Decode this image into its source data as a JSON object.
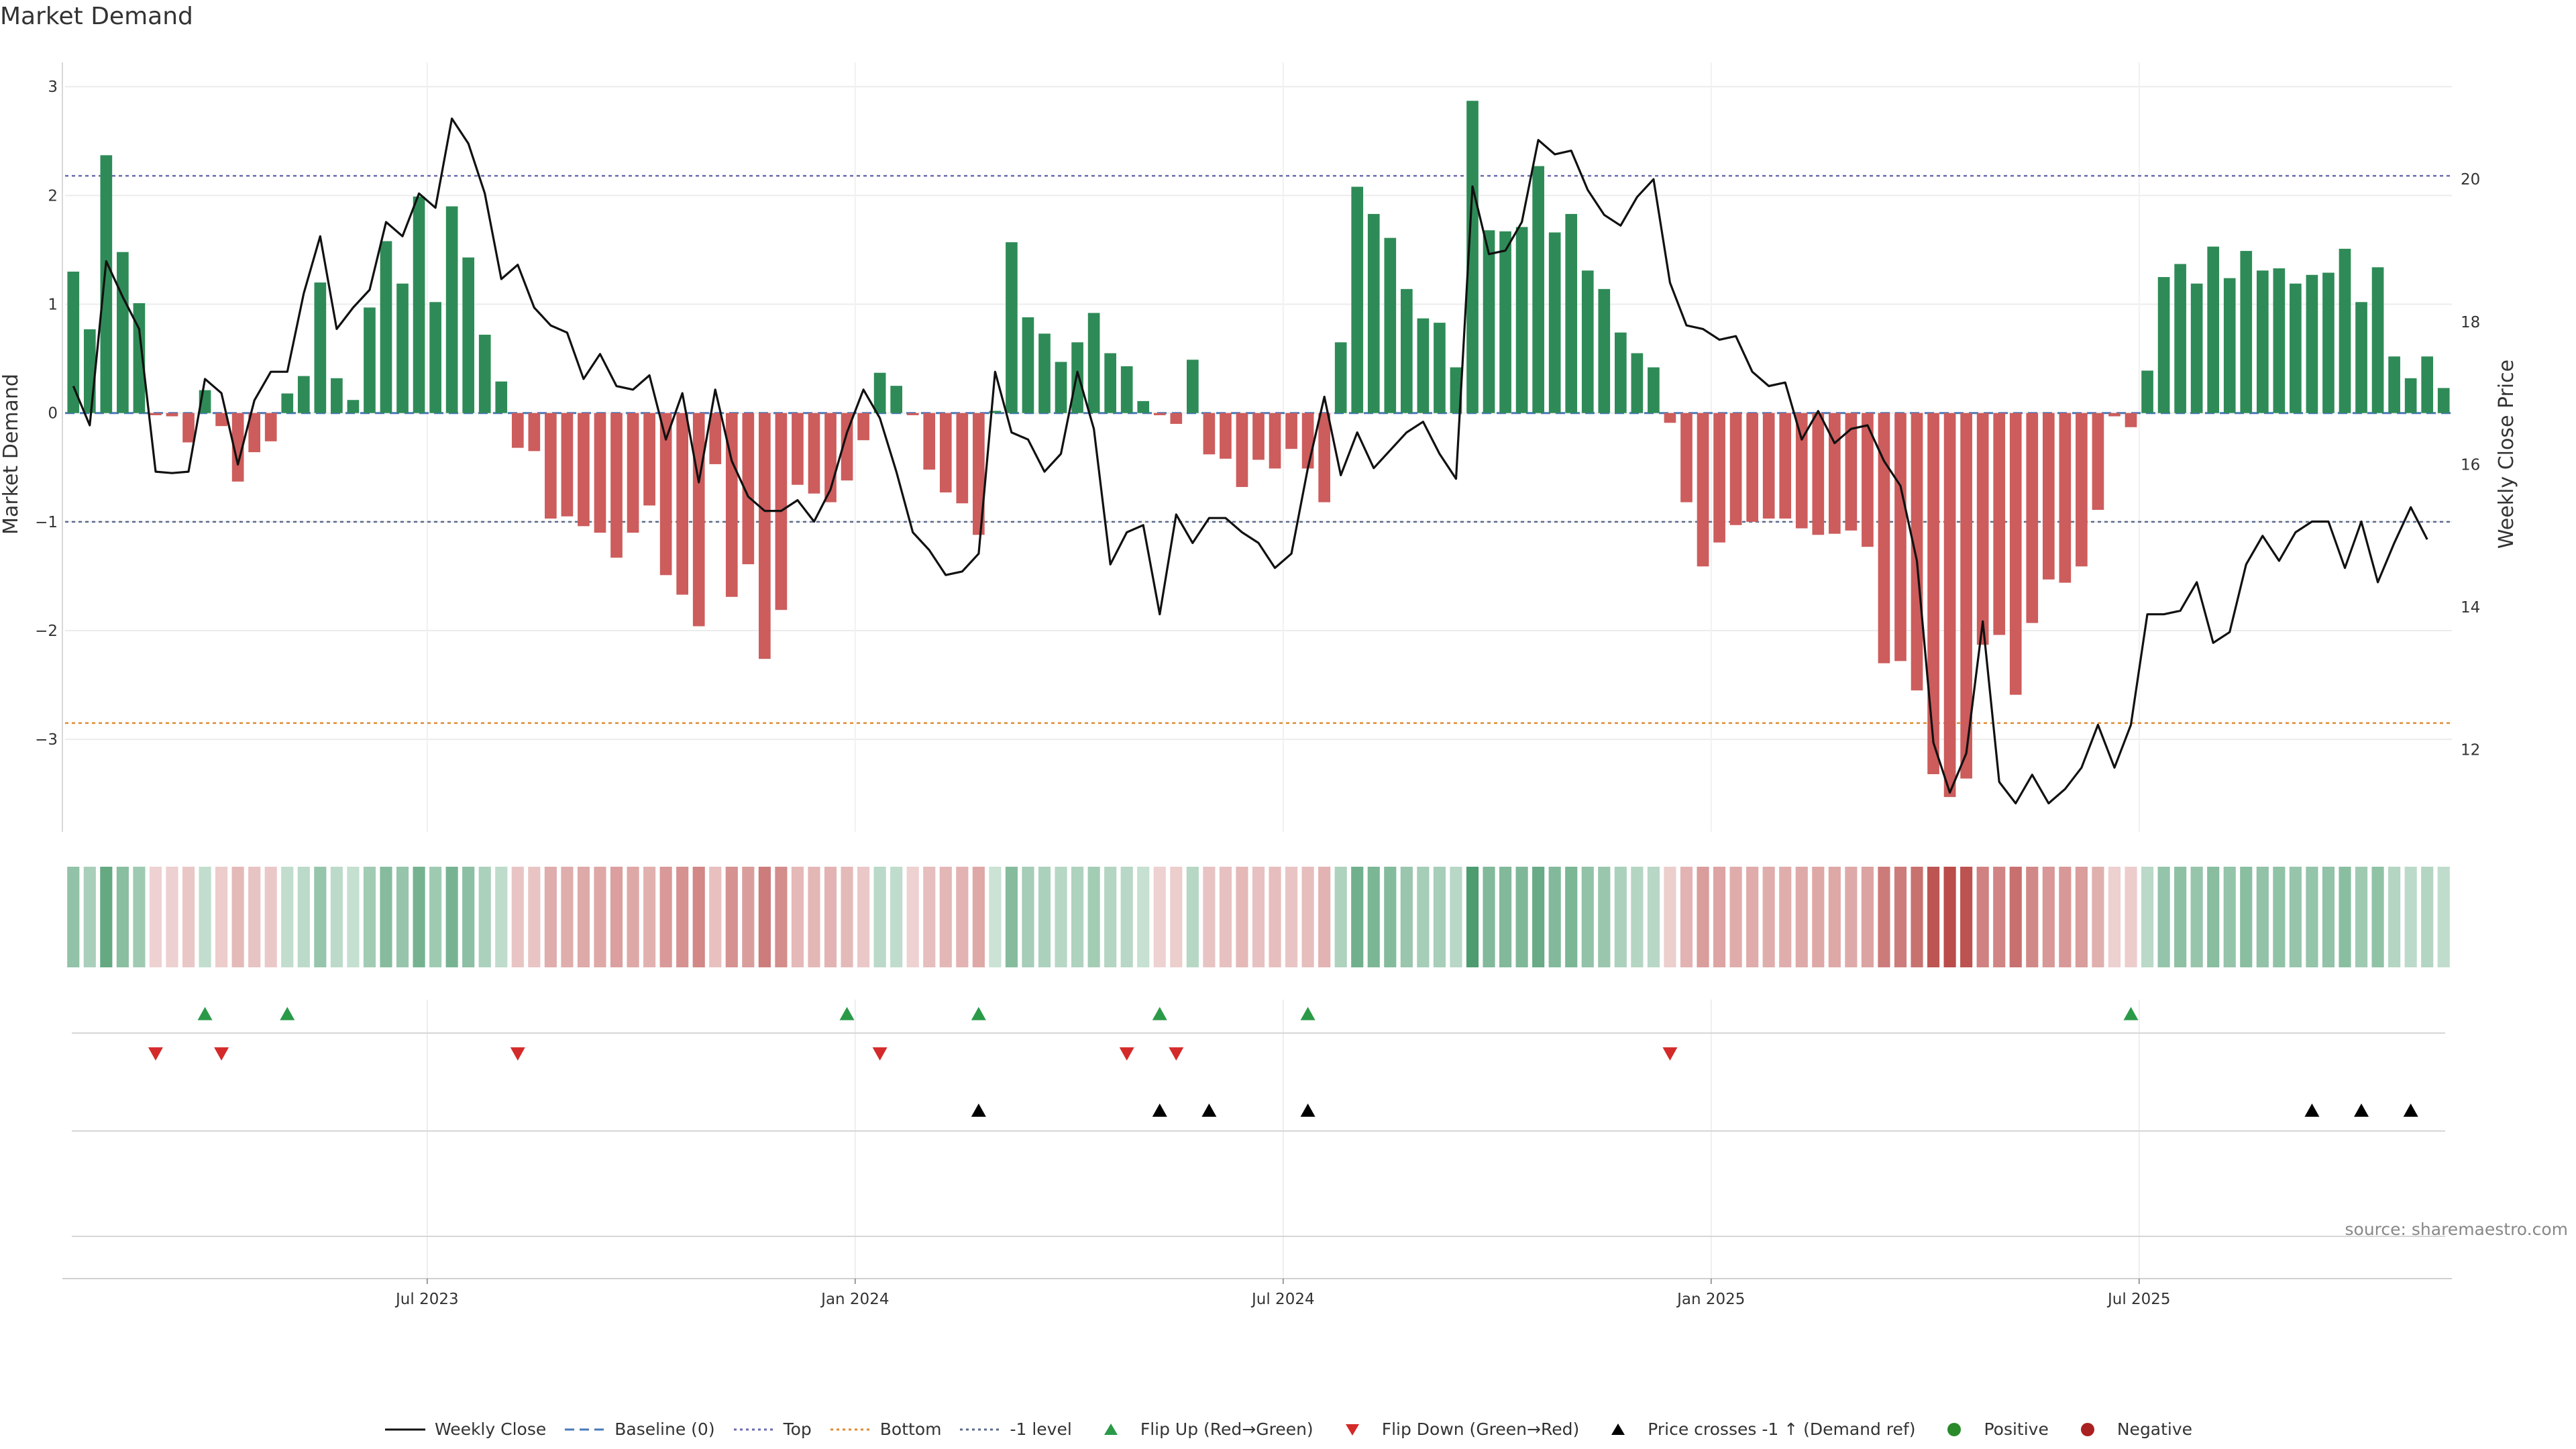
{
  "chart_data": {
    "type": "bar+line",
    "title": "Market Demand",
    "source": "source: sharemaestro.com",
    "y_left": {
      "label": "Market Demand",
      "ticks": [
        3,
        2,
        1,
        0,
        -1,
        -2,
        -3
      ],
      "tick_labels": [
        "3",
        "2",
        "1",
        "0",
        "−1",
        "−2",
        "−3"
      ],
      "range": [
        -3.85,
        3.1
      ]
    },
    "y_right": {
      "label": "Weekly Close Price",
      "ticks": [
        20,
        18,
        16,
        14,
        12
      ],
      "tick_labels": [
        "20",
        "18",
        "16",
        "14",
        "12"
      ],
      "range": [
        10.85,
        21.45
      ]
    },
    "x_ticks": [
      {
        "label": "Jul 2023",
        "week": 22
      },
      {
        "label": "Jan 2024",
        "week": 48
      },
      {
        "label": "Jul 2024",
        "week": 74
      },
      {
        "label": "Jan 2025",
        "week": 100
      },
      {
        "label": "Jul 2025",
        "week": 126
      }
    ],
    "reference_lines": {
      "top": 2.18,
      "bottom": -2.85,
      "minus_one": -1.0,
      "baseline": 0
    },
    "demand": [
      1.3,
      0.77,
      2.37,
      1.48,
      1.01,
      -0.02,
      -0.03,
      -0.27,
      0.21,
      -0.12,
      -0.63,
      -0.36,
      -0.26,
      0.18,
      0.34,
      1.2,
      0.32,
      0.12,
      0.97,
      1.58,
      1.19,
      1.99,
      1.02,
      1.9,
      1.43,
      0.72,
      0.29,
      -0.32,
      -0.35,
      -0.97,
      -0.95,
      -1.04,
      -1.1,
      -1.33,
      -1.1,
      -0.85,
      -1.49,
      -1.67,
      -1.96,
      -0.47,
      -1.69,
      -1.39,
      -2.26,
      -1.81,
      -0.66,
      -0.74,
      -0.82,
      -0.62,
      -0.25,
      0.37,
      0.25,
      -0.02,
      -0.52,
      -0.73,
      -0.83,
      -1.12,
      0.02,
      1.57,
      0.88,
      0.73,
      0.47,
      0.65,
      0.92,
      0.55,
      0.43,
      0.11,
      -0.02,
      -0.1,
      0.49,
      -0.38,
      -0.42,
      -0.68,
      -0.43,
      -0.51,
      -0.33,
      -0.51,
      -0.82,
      0.65,
      2.08,
      1.83,
      1.61,
      1.14,
      0.87,
      0.83,
      0.42,
      2.87,
      1.68,
      1.67,
      1.71,
      2.27,
      1.66,
      1.83,
      1.31,
      1.14,
      0.74,
      0.55,
      0.42,
      -0.09,
      -0.82,
      -1.41,
      -1.19,
      -1.03,
      -1.0,
      -0.97,
      -0.97,
      -1.06,
      -1.12,
      -1.11,
      -1.08,
      -1.23,
      -2.3,
      -2.28,
      -2.55,
      -3.32,
      -3.53,
      -3.36,
      -2.13,
      -2.04,
      -2.59,
      -1.93,
      -1.53,
      -1.56,
      -1.41,
      -0.89,
      -0.03,
      -0.13,
      0.39,
      1.25,
      1.37,
      1.19,
      1.53,
      1.24,
      1.49,
      1.31,
      1.33,
      1.19,
      1.27,
      1.29,
      1.51,
      1.02,
      1.34,
      0.52,
      0.32,
      0.52,
      0.23
    ],
    "close": [
      17.1,
      16.55,
      18.85,
      18.35,
      17.9,
      15.9,
      15.88,
      15.9,
      17.2,
      17.0,
      16.0,
      16.9,
      17.3,
      17.3,
      18.4,
      19.2,
      17.9,
      18.2,
      18.45,
      19.4,
      19.2,
      19.8,
      19.6,
      20.85,
      20.5,
      19.8,
      18.6,
      18.8,
      18.2,
      17.95,
      17.85,
      17.2,
      17.55,
      17.1,
      17.05,
      17.25,
      16.35,
      17.0,
      15.75,
      17.05,
      16.05,
      15.55,
      15.35,
      15.35,
      15.5,
      15.2,
      15.65,
      16.45,
      17.05,
      16.65,
      15.9,
      15.05,
      14.8,
      14.45,
      14.5,
      14.75,
      17.3,
      16.45,
      16.35,
      15.9,
      16.15,
      17.3,
      16.5,
      14.6,
      15.05,
      15.15,
      13.9,
      15.3,
      14.9,
      15.25,
      15.25,
      15.05,
      14.9,
      14.55,
      14.75,
      15.95,
      16.95,
      15.85,
      16.45,
      15.95,
      16.2,
      16.45,
      16.6,
      16.15,
      15.8,
      19.9,
      18.95,
      19.0,
      19.4,
      20.55,
      20.35,
      20.4,
      19.85,
      19.5,
      19.35,
      19.75,
      20.0,
      18.55,
      17.95,
      17.9,
      17.75,
      17.8,
      17.3,
      17.1,
      17.15,
      16.35,
      16.75,
      16.3,
      16.5,
      16.55,
      16.05,
      15.7,
      14.65,
      12.1,
      11.4,
      11.95,
      13.8,
      11.55,
      11.25,
      11.65,
      11.25,
      11.45,
      11.75,
      12.35,
      11.75,
      12.35,
      13.9,
      13.9,
      13.95,
      14.35,
      13.5,
      13.65,
      14.6,
      15.0,
      14.65,
      15.05,
      15.2,
      15.2,
      14.55,
      15.2,
      14.35,
      14.9,
      15.4,
      14.95
    ],
    "flip_up_weeks": [
      8,
      13,
      47,
      55,
      66,
      75,
      125
    ],
    "flip_down_weeks": [
      5,
      9,
      27,
      49,
      64,
      67,
      97
    ],
    "price_cross_weeks": [
      55,
      66,
      69,
      75,
      136,
      139,
      142
    ],
    "legend": [
      {
        "label": "Weekly Close",
        "symbol": "line-solid",
        "color": "#111111"
      },
      {
        "label": "Baseline (0)",
        "symbol": "line-dashed",
        "color": "#4a78b8"
      },
      {
        "label": "Top",
        "symbol": "line-dotted",
        "color": "#6a6ab0"
      },
      {
        "label": "Bottom",
        "symbol": "line-dotted",
        "color": "#e08a30"
      },
      {
        "label": "-1 level",
        "symbol": "line-dotted",
        "color": "#5a6a8a"
      },
      {
        "label": "Flip Up (Red→Green)",
        "symbol": "triangle-up",
        "color": "#2a9a48"
      },
      {
        "label": "Flip Down (Green→Red)",
        "symbol": "triangle-down",
        "color": "#d42a2a"
      },
      {
        "label": "Price crosses -1 ↑ (Demand ref)",
        "symbol": "triangle-up",
        "color": "#000000"
      },
      {
        "label": "Positive",
        "symbol": "dot",
        "color": "#2a8a2a"
      },
      {
        "label": "Negative",
        "symbol": "dot",
        "color": "#aa2020"
      }
    ],
    "colors": {
      "positive_bar": "#2e8b57",
      "negative_bar": "#cd5c5c",
      "close_line": "#111111",
      "flip_up": "#2a9a48",
      "flip_down": "#d42a2a",
      "price_cross": "#000000",
      "strip_pos": "#2e8b57",
      "strip_neg": "#b94a48"
    }
  }
}
